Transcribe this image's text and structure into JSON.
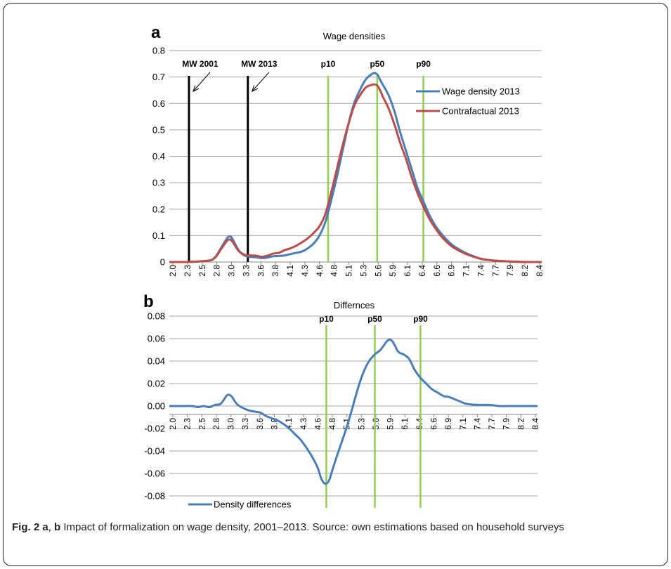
{
  "caption": {
    "fig_label": "Fig. 2",
    "letter_a": "a",
    "sep": ", ",
    "letter_b": "b",
    "text": " Impact of formalization on wage density, 2001–2013. Source: own estimations based on household surveys"
  },
  "chart_data": [
    {
      "panel": "a",
      "type": "line",
      "title": "Wage densities",
      "xlabel": "",
      "ylabel": "",
      "ylim": [
        0,
        0.8
      ],
      "yticks": [
        "0",
        "0.1",
        "0.2",
        "0.3",
        "0.4",
        "0.5",
        "0.6",
        "0.7",
        "0.8"
      ],
      "xlim": [
        2.0,
        8.45
      ],
      "xtick_labels": [
        "2.0",
        "2.3",
        "2.5",
        "2.8",
        "3.0",
        "3.3",
        "3.6",
        "3.8",
        "4.1",
        "4.3",
        "4.6",
        "4.8",
        "5.1",
        "5.3",
        "5.6",
        "5.9",
        "6.1",
        "6.4",
        "6.6",
        "6.9",
        "7.1",
        "7.4",
        "7.7",
        "7.9",
        "8.2",
        "8.4"
      ],
      "grid": true,
      "legend_position": "top-right",
      "vertical_lines": [
        {
          "x": 2.34,
          "label": "MW 2001",
          "color": "#000000",
          "arrow": true
        },
        {
          "x": 3.36,
          "label": "MW 2013",
          "color": "#000000",
          "arrow": true
        },
        {
          "x": 4.75,
          "label": "p10",
          "color": "#92d050",
          "arrow": false
        },
        {
          "x": 5.6,
          "label": "p50",
          "color": "#92d050",
          "arrow": false
        },
        {
          "x": 6.4,
          "label": "p90",
          "color": "#92d050",
          "arrow": false
        }
      ],
      "series": [
        {
          "name": "Wage density  2013",
          "color": "#4a7ebb",
          "x": [
            2.0,
            2.3,
            2.5,
            2.7,
            2.8,
            2.9,
            3.0,
            3.05,
            3.1,
            3.2,
            3.3,
            3.4,
            3.5,
            3.6,
            3.7,
            3.8,
            3.9,
            4.0,
            4.1,
            4.2,
            4.3,
            4.4,
            4.5,
            4.6,
            4.7,
            4.8,
            4.9,
            5.0,
            5.1,
            5.2,
            5.3,
            5.4,
            5.5,
            5.55,
            5.6,
            5.65,
            5.7,
            5.8,
            5.9,
            6.0,
            6.1,
            6.2,
            6.3,
            6.4,
            6.5,
            6.6,
            6.7,
            6.8,
            6.9,
            7.0,
            7.1,
            7.2,
            7.4,
            7.6,
            7.8,
            8.0,
            8.2,
            8.45
          ],
          "y": [
            0,
            0,
            0.002,
            0.006,
            0.02,
            0.055,
            0.09,
            0.097,
            0.085,
            0.045,
            0.025,
            0.02,
            0.018,
            0.015,
            0.017,
            0.022,
            0.023,
            0.025,
            0.03,
            0.035,
            0.04,
            0.052,
            0.07,
            0.1,
            0.15,
            0.23,
            0.32,
            0.42,
            0.52,
            0.6,
            0.65,
            0.69,
            0.71,
            0.715,
            0.71,
            0.69,
            0.67,
            0.63,
            0.57,
            0.49,
            0.42,
            0.35,
            0.28,
            0.23,
            0.18,
            0.14,
            0.11,
            0.085,
            0.065,
            0.05,
            0.038,
            0.028,
            0.012,
            0.006,
            0.003,
            0.001,
            0,
            0
          ]
        },
        {
          "name": "Contrafactual 2013",
          "color": "#be4b48",
          "x": [
            2.0,
            2.3,
            2.5,
            2.7,
            2.8,
            2.9,
            3.0,
            3.05,
            3.1,
            3.2,
            3.3,
            3.4,
            3.5,
            3.6,
            3.7,
            3.8,
            3.9,
            4.0,
            4.1,
            4.2,
            4.3,
            4.4,
            4.5,
            4.6,
            4.7,
            4.8,
            4.9,
            5.0,
            5.1,
            5.2,
            5.3,
            5.4,
            5.5,
            5.55,
            5.6,
            5.65,
            5.7,
            5.8,
            5.9,
            6.0,
            6.1,
            6.2,
            6.3,
            6.4,
            6.5,
            6.6,
            6.7,
            6.8,
            6.9,
            7.0,
            7.1,
            7.2,
            7.4,
            7.6,
            7.8,
            8.0,
            8.2,
            8.45
          ],
          "y": [
            0,
            0,
            0.002,
            0.006,
            0.018,
            0.05,
            0.08,
            0.085,
            0.075,
            0.042,
            0.028,
            0.025,
            0.024,
            0.02,
            0.024,
            0.032,
            0.035,
            0.045,
            0.052,
            0.062,
            0.075,
            0.09,
            0.11,
            0.135,
            0.18,
            0.26,
            0.35,
            0.44,
            0.52,
            0.59,
            0.63,
            0.66,
            0.67,
            0.672,
            0.668,
            0.65,
            0.625,
            0.58,
            0.52,
            0.45,
            0.39,
            0.32,
            0.26,
            0.21,
            0.165,
            0.13,
            0.1,
            0.077,
            0.058,
            0.045,
            0.034,
            0.025,
            0.012,
            0.006,
            0.003,
            0.001,
            0,
            0
          ]
        }
      ]
    },
    {
      "panel": "b",
      "type": "line",
      "title": "Differnces",
      "xlabel": "",
      "ylabel": "",
      "ylim": [
        -0.08,
        0.08
      ],
      "yticks": [
        "-0.08",
        "-0.06",
        "-0.04",
        "-0.02",
        "0.00",
        "0.02",
        "0.04",
        "0.06",
        "0.08"
      ],
      "xlim": [
        2.0,
        8.45
      ],
      "xtick_labels": [
        "2.0",
        "2.3",
        "2.5",
        "2.8",
        "3.0",
        "3.3",
        "3.6",
        "3.8",
        "4.1",
        "4.3",
        "4.6",
        "4.8",
        "5.1",
        "5.3",
        "5.6",
        "5.9",
        "6.1",
        "6.4",
        "6.6",
        "6.9",
        "7.1",
        "7.4",
        "7.7",
        "7.9",
        "8.2",
        "8.4"
      ],
      "grid": true,
      "legend_position": "bottom-left",
      "vertical_lines": [
        {
          "x": 4.75,
          "label": "p10",
          "color": "#92d050"
        },
        {
          "x": 5.6,
          "label": "p50",
          "color": "#92d050"
        },
        {
          "x": 6.4,
          "label": "p90",
          "color": "#92d050"
        }
      ],
      "series": [
        {
          "name": "Density differences",
          "color": "#4a7ebb",
          "x": [
            2.0,
            2.2,
            2.4,
            2.5,
            2.6,
            2.7,
            2.8,
            2.9,
            3.0,
            3.05,
            3.1,
            3.15,
            3.2,
            3.3,
            3.4,
            3.5,
            3.6,
            3.7,
            3.8,
            3.9,
            4.0,
            4.1,
            4.2,
            4.3,
            4.4,
            4.5,
            4.6,
            4.65,
            4.7,
            4.75,
            4.8,
            4.85,
            4.9,
            5.0,
            5.1,
            5.2,
            5.3,
            5.4,
            5.5,
            5.6,
            5.7,
            5.8,
            5.85,
            5.9,
            5.95,
            6.0,
            6.05,
            6.1,
            6.2,
            6.3,
            6.4,
            6.5,
            6.6,
            6.7,
            6.8,
            6.9,
            7.0,
            7.1,
            7.2,
            7.4,
            7.6,
            7.8,
            8.0,
            8.2,
            8.45
          ],
          "y": [
            0,
            0,
            0,
            -0.001,
            0,
            -0.001,
            0.001,
            0.002,
            0.009,
            0.01,
            0.008,
            0.004,
            0.001,
            -0.002,
            -0.004,
            -0.005,
            -0.006,
            -0.009,
            -0.011,
            -0.013,
            -0.016,
            -0.02,
            -0.025,
            -0.03,
            -0.037,
            -0.045,
            -0.055,
            -0.063,
            -0.068,
            -0.069,
            -0.066,
            -0.058,
            -0.05,
            -0.035,
            -0.02,
            -0.003,
            0.015,
            0.03,
            0.04,
            0.046,
            0.05,
            0.057,
            0.059,
            0.058,
            0.054,
            0.049,
            0.047,
            0.046,
            0.042,
            0.032,
            0.025,
            0.02,
            0.015,
            0.012,
            0.009,
            0.008,
            0.006,
            0.004,
            0.002,
            0.001,
            0.001,
            0,
            0,
            0,
            0
          ]
        }
      ]
    }
  ]
}
